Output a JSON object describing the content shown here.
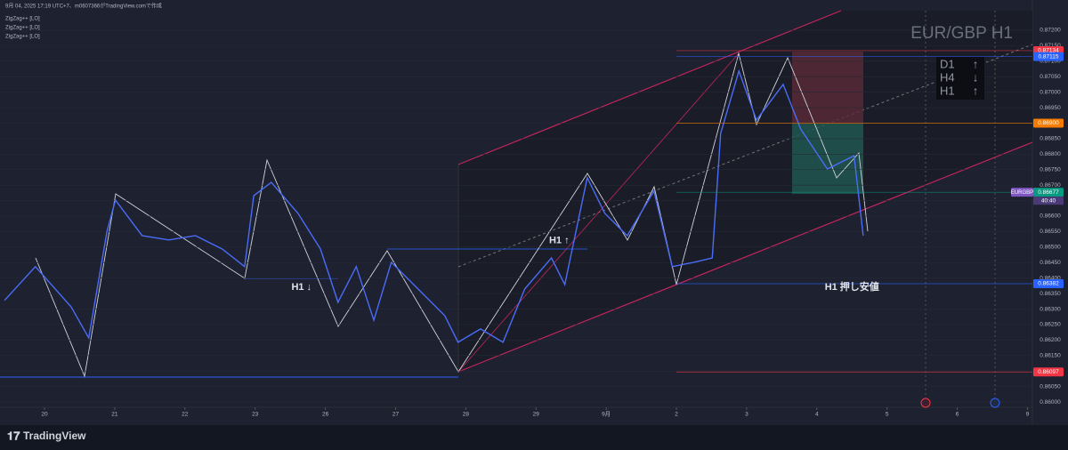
{
  "header": {
    "caption": "9月 04, 2025 17:19 UTC+7、m0607366がTradingView.comで作成",
    "indicators": [
      "ZigZag++ [LO]",
      "ZigZag++ [LO]",
      "ZigZag++ [LO]"
    ]
  },
  "watermark": "EUR/GBP H1",
  "trend_box": [
    {
      "tf": "D1",
      "arrow": "↑"
    },
    {
      "tf": "H4",
      "arrow": "↓"
    },
    {
      "tf": "H1",
      "arrow": "↑"
    }
  ],
  "footer": {
    "brand": "TradingView"
  },
  "chart_data": {
    "type": "line",
    "x": [
      -0.57,
      -0.13,
      0.38,
      0.63,
      0.89,
      1.01,
      1.39,
      1.77,
      2.15,
      2.53,
      2.85,
      2.98,
      3.23,
      3.61,
      3.93,
      4.18,
      4.44,
      4.69,
      4.94,
      5.32,
      5.7,
      5.89,
      6.21,
      6.53,
      6.84,
      7.22,
      7.41,
      7.73,
      7.98,
      8.3,
      8.68,
      8.94,
      9.25,
      9.51,
      9.63,
      9.89,
      10.14,
      10.52,
      10.77,
      11.15,
      11.53,
      11.66
    ],
    "series": [
      {
        "name": "EURGBP",
        "color": "#4a6cf7",
        "values": [
          0.86328,
          0.86437,
          0.86307,
          0.86207,
          0.86551,
          0.86652,
          0.86537,
          0.86523,
          0.86537,
          0.86494,
          0.86437,
          0.86666,
          0.86709,
          0.86609,
          0.86494,
          0.86322,
          0.86437,
          0.86264,
          0.86451,
          0.86365,
          0.86279,
          0.86193,
          0.86236,
          0.86193,
          0.86365,
          0.86465,
          0.86379,
          0.86724,
          0.86609,
          0.86537,
          0.86681,
          0.86437,
          0.86451,
          0.86465,
          0.86867,
          0.87068,
          0.8691,
          0.87025,
          0.86881,
          0.86752,
          0.86795,
          0.86537
        ]
      }
    ],
    "xlim": [
      -0.634,
      14.07
    ],
    "xticks": [
      {
        "value": 0,
        "label": "20"
      },
      {
        "value": 1,
        "label": "21"
      },
      {
        "value": 2,
        "label": "22"
      },
      {
        "value": 3,
        "label": "23"
      },
      {
        "value": 4,
        "label": "26"
      },
      {
        "value": 5,
        "label": "27"
      },
      {
        "value": 6,
        "label": "28"
      },
      {
        "value": 7,
        "label": "29"
      },
      {
        "value": 8,
        "label": "9月"
      },
      {
        "value": 9,
        "label": "2"
      },
      {
        "value": 10,
        "label": "3"
      },
      {
        "value": 11,
        "label": "4"
      },
      {
        "value": 12,
        "label": "5"
      },
      {
        "value": 13,
        "label": "6"
      },
      {
        "value": 14,
        "label": "9"
      }
    ],
    "ylim": [
      0.85983,
      0.87263
    ],
    "yticks": [
      {
        "value": 0.86,
        "label": "0.86000"
      },
      {
        "value": 0.8605,
        "label": "0.86050"
      },
      {
        "value": 0.861,
        "label": "0.86100"
      },
      {
        "value": 0.8615,
        "label": "0.86150"
      },
      {
        "value": 0.862,
        "label": "0.86200"
      },
      {
        "value": 0.8625,
        "label": "0.86250"
      },
      {
        "value": 0.863,
        "label": "0.86300"
      },
      {
        "value": 0.8635,
        "label": "0.86350"
      },
      {
        "value": 0.864,
        "label": "0.86400"
      },
      {
        "value": 0.8645,
        "label": "0.86450"
      },
      {
        "value": 0.865,
        "label": "0.86500"
      },
      {
        "value": 0.8655,
        "label": "0.86550"
      },
      {
        "value": 0.866,
        "label": "0.86600"
      },
      {
        "value": 0.8665,
        "label": "0.86650"
      },
      {
        "value": 0.867,
        "label": "0.86700"
      },
      {
        "value": 0.8675,
        "label": "0.86750"
      },
      {
        "value": 0.868,
        "label": "0.86800"
      },
      {
        "value": 0.8685,
        "label": "0.86850"
      },
      {
        "value": 0.869,
        "label": "0.86900"
      },
      {
        "value": 0.8695,
        "label": "0.86950"
      },
      {
        "value": 0.87,
        "label": "0.87000"
      },
      {
        "value": 0.8705,
        "label": "0.87050"
      },
      {
        "value": 0.871,
        "label": "0.87100"
      },
      {
        "value": 0.8715,
        "label": "0.87150"
      },
      {
        "value": 0.872,
        "label": "0.87200"
      }
    ],
    "price_labels": [
      {
        "value": 0.87134,
        "label": "0.87134",
        "color": "#f23645"
      },
      {
        "value": 0.87115,
        "label": "0.87115",
        "color": "#2962ff"
      },
      {
        "value": 0.869,
        "label": "0.86900",
        "color": "#f57c00"
      },
      {
        "value": 0.86677,
        "label": "0.86677",
        "color": "#089981"
      },
      {
        "value": 0.86382,
        "label": "0.86382",
        "color": "#2962ff"
      },
      {
        "value": 0.86097,
        "label": "0.86097",
        "color": "#f23645"
      }
    ],
    "symbol_tag": "EURGBP",
    "countdown": "40:40",
    "annotations": [
      {
        "text": "H1 ↓",
        "x": 3.66,
        "y": 0.86382
      },
      {
        "text": "H1 ↑",
        "x": 7.33,
        "y": 0.86532
      },
      {
        "text": "H1 押し安値",
        "x": 11.5,
        "y": 0.86382
      }
    ]
  }
}
